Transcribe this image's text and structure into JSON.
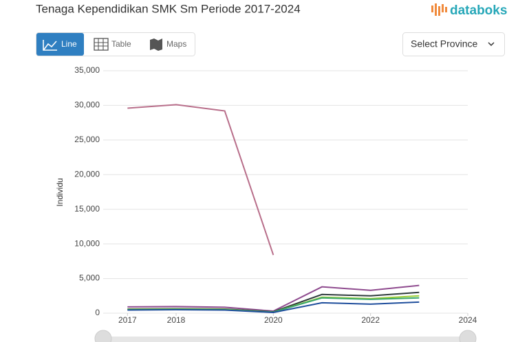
{
  "header": {
    "title": "Tenaga Kependidikan SMK Sm Periode 2017-2024",
    "logo": "databoks"
  },
  "tabs": [
    "Line",
    "Table",
    "Maps"
  ],
  "province_select": "Select Province",
  "chart_data": {
    "type": "line",
    "ylabel": "Individu",
    "x": [
      2017,
      2018,
      2019,
      2020,
      2021,
      2022,
      2023
    ],
    "xlim": [
      2016.5,
      2024
    ],
    "xticks": [
      2017,
      2018,
      2020,
      2022,
      2024
    ],
    "ylim": [
      0,
      35000
    ],
    "yticks": [
      0,
      {
        "value": 5000,
        "label": "5,000"
      },
      {
        "value": 10000,
        "label": "10,000"
      },
      {
        "value": 15000,
        "label": "15,000"
      },
      {
        "value": 20000,
        "label": "20,000"
      },
      {
        "value": 25000,
        "label": "25,000"
      },
      {
        "value": 30000,
        "label": "30,000"
      },
      {
        "value": 35000,
        "label": "35,000"
      }
    ],
    "grid": true,
    "series": [
      {
        "color": "#b86e8a",
        "values": [
          29600,
          30100,
          29200,
          8400,
          null,
          null,
          null
        ]
      },
      {
        "color": "#8e4a8e",
        "values": [
          900,
          950,
          850,
          300,
          3800,
          3300,
          4000
        ]
      },
      {
        "color": "#2d3a3a",
        "values": [
          600,
          650,
          600,
          200,
          2700,
          2500,
          3000
        ]
      },
      {
        "color": "#9acd32",
        "values": [
          550,
          600,
          550,
          150,
          2300,
          2100,
          2500
        ]
      },
      {
        "color": "#3aa76d",
        "values": [
          500,
          550,
          500,
          150,
          2200,
          2000,
          2200
        ]
      },
      {
        "color": "#1f4e9c",
        "values": [
          450,
          500,
          450,
          100,
          1500,
          1300,
          1600
        ]
      }
    ]
  }
}
